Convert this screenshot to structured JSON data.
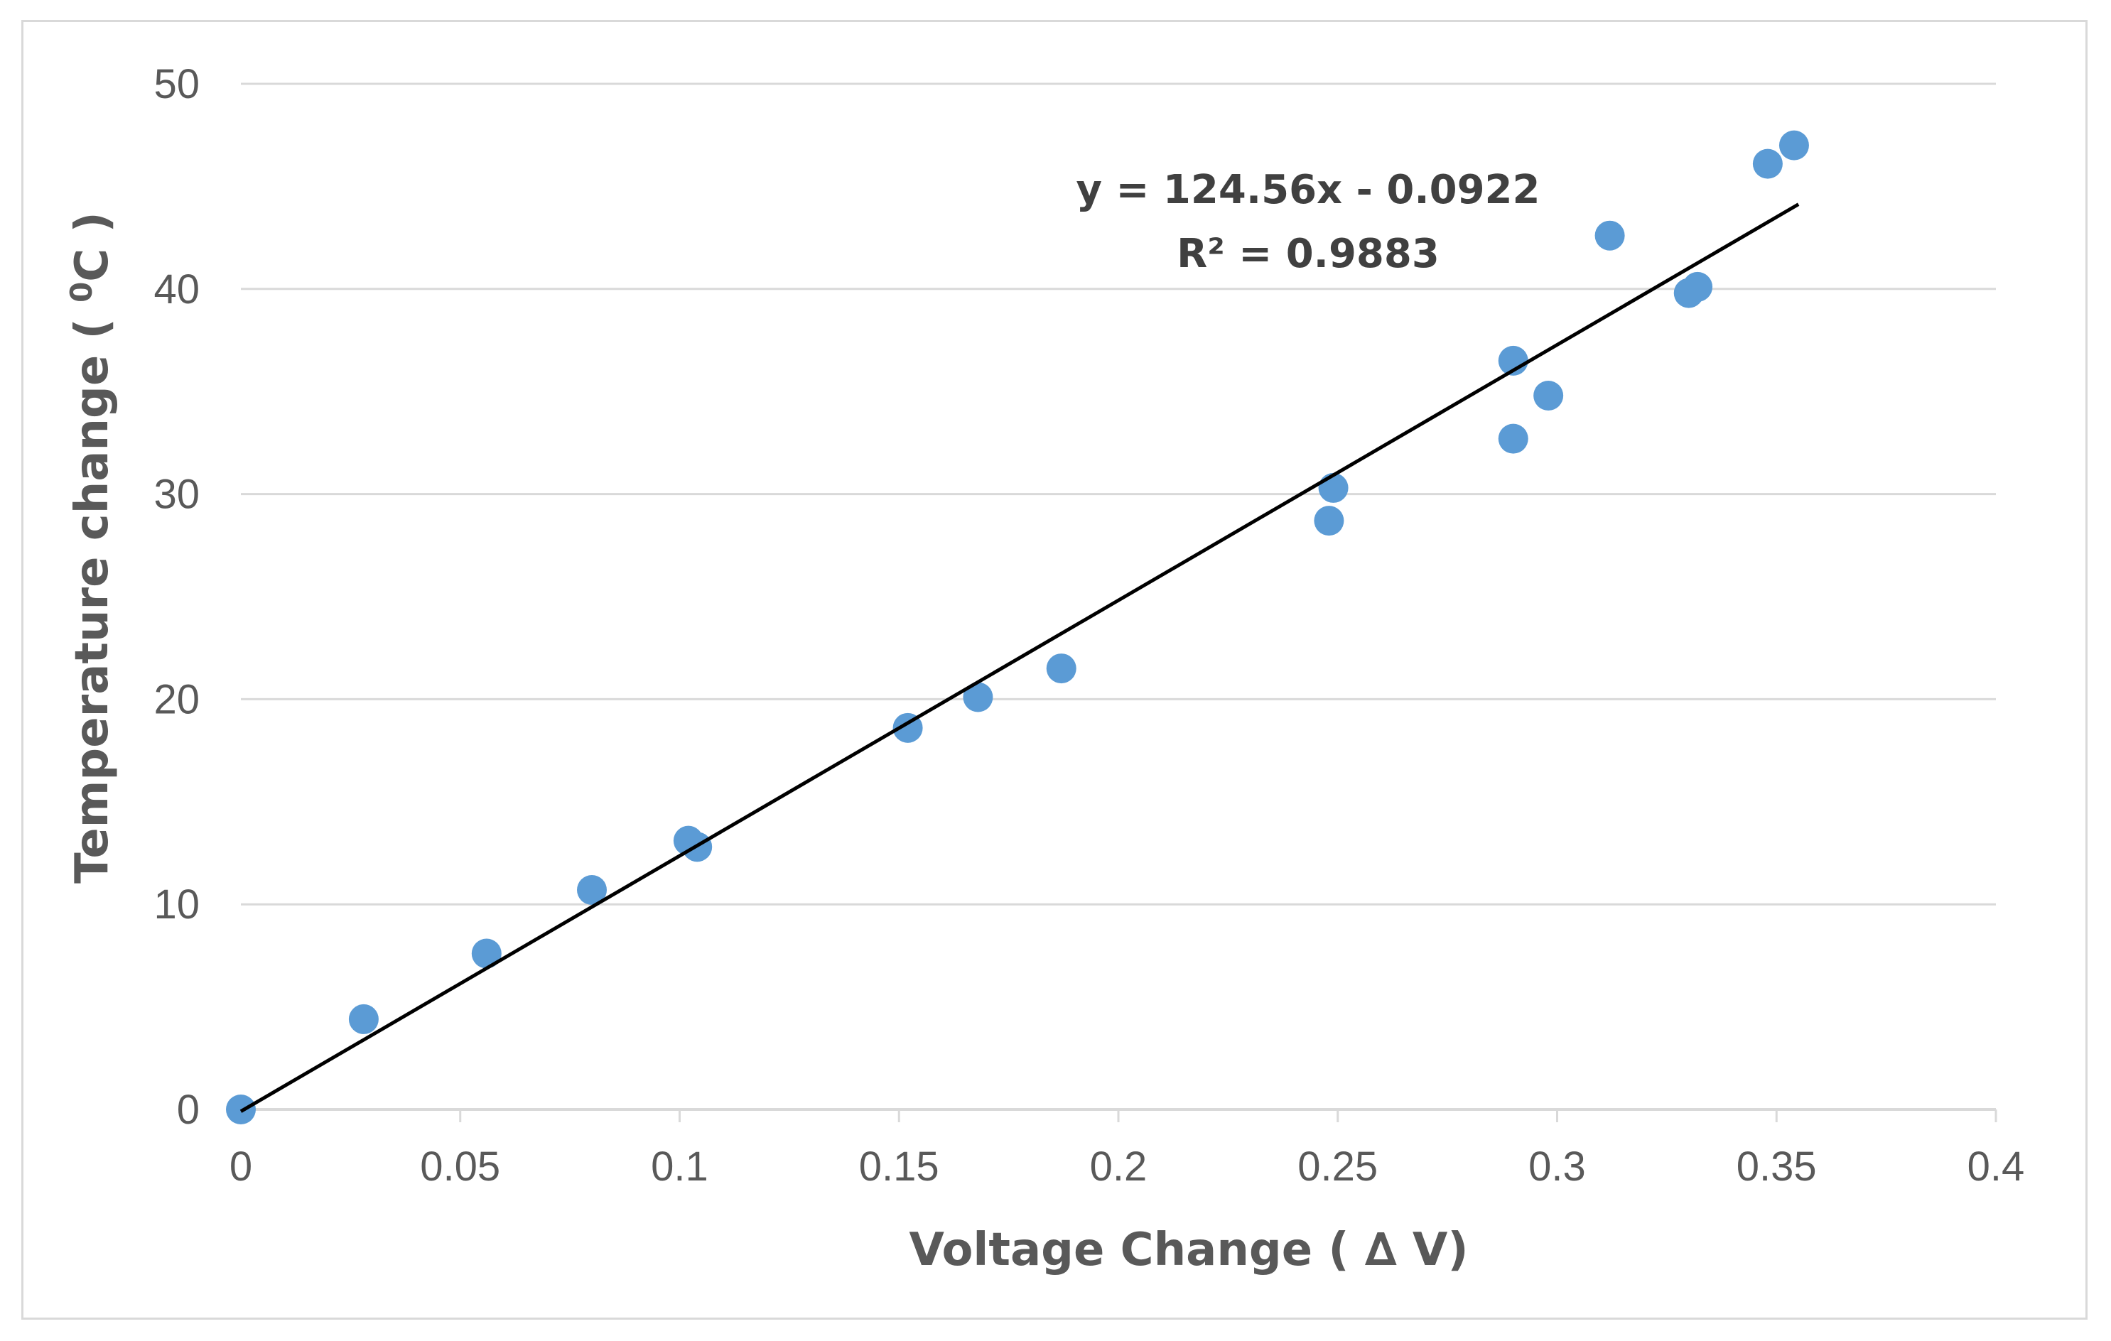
{
  "chart_data": {
    "type": "scatter",
    "title": "",
    "xlabel": "Voltage  Change ( ∆ V)",
    "ylabel_main": "Temperature  change ( ",
    "ylabel_sup": "0",
    "ylabel_end": "C )",
    "xlim": [
      0,
      0.4
    ],
    "ylim": [
      0,
      50
    ],
    "x_ticks": [
      0,
      0.05,
      0.1,
      0.15,
      0.2,
      0.25,
      0.3,
      0.35,
      0.4
    ],
    "x_tick_labels": [
      "0",
      "0.05",
      "0.1",
      "0.15",
      "0.2",
      "0.25",
      "0.3",
      "0.35",
      "0.4"
    ],
    "y_ticks": [
      0,
      10,
      20,
      30,
      40,
      50
    ],
    "y_tick_labels": [
      "0",
      "10",
      "20",
      "30",
      "40",
      "50"
    ],
    "grid": "horizontal",
    "series": [
      {
        "name": "Temperature change",
        "color": "#5b9bd5",
        "points": [
          {
            "x": 0.0,
            "y": 0.0
          },
          {
            "x": 0.028,
            "y": 4.4
          },
          {
            "x": 0.056,
            "y": 7.6
          },
          {
            "x": 0.08,
            "y": 10.7
          },
          {
            "x": 0.102,
            "y": 13.1
          },
          {
            "x": 0.104,
            "y": 12.8
          },
          {
            "x": 0.152,
            "y": 18.6
          },
          {
            "x": 0.168,
            "y": 20.1
          },
          {
            "x": 0.187,
            "y": 21.5
          },
          {
            "x": 0.248,
            "y": 28.7
          },
          {
            "x": 0.249,
            "y": 30.3
          },
          {
            "x": 0.29,
            "y": 36.5
          },
          {
            "x": 0.29,
            "y": 32.7
          },
          {
            "x": 0.298,
            "y": 34.8
          },
          {
            "x": 0.312,
            "y": 42.6
          },
          {
            "x": 0.33,
            "y": 39.8
          },
          {
            "x": 0.332,
            "y": 40.1
          },
          {
            "x": 0.348,
            "y": 46.1
          },
          {
            "x": 0.354,
            "y": 47.0
          }
        ]
      }
    ],
    "trendline": {
      "type": "linear",
      "slope": 124.56,
      "intercept": -0.0922,
      "x_range": [
        0,
        0.355
      ],
      "color": "#000000",
      "equation": "y = 124.56x - 0.0922",
      "r_squared": "R² = 0.9883"
    }
  }
}
